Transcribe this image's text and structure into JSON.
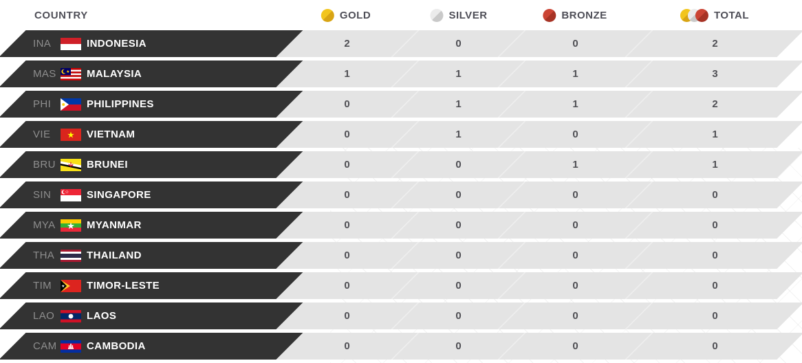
{
  "header": {
    "country_label": "COUNTRY",
    "columns": [
      {
        "key": "gold",
        "label": "GOLD",
        "icon": "gold-medal-icon"
      },
      {
        "key": "silver",
        "label": "SILVER",
        "icon": "silver-medal-icon"
      },
      {
        "key": "bronze",
        "label": "BRONZE",
        "icon": "bronze-medal-icon"
      },
      {
        "key": "total",
        "label": "TOTAL",
        "icon": "total-medals-icon"
      }
    ]
  },
  "colors": {
    "gold": "#f2c51d",
    "gold_dark": "#d8a413",
    "silver": "#ebebeb",
    "silver_dark": "#c9c9c9",
    "bronze": "#cb4434",
    "bronze_dark": "#a73325",
    "bar": "#333333",
    "cell": "#e4e4e4"
  },
  "rows": [
    {
      "code": "INA",
      "name": "INDONESIA",
      "flag": "indonesia",
      "gold": 2,
      "silver": 0,
      "bronze": 0,
      "total": 2
    },
    {
      "code": "MAS",
      "name": "MALAYSIA",
      "flag": "malaysia",
      "gold": 1,
      "silver": 1,
      "bronze": 1,
      "total": 3
    },
    {
      "code": "PHI",
      "name": "PHILIPPINES",
      "flag": "philippines",
      "gold": 0,
      "silver": 1,
      "bronze": 1,
      "total": 2
    },
    {
      "code": "VIE",
      "name": "VIETNAM",
      "flag": "vietnam",
      "gold": 0,
      "silver": 1,
      "bronze": 0,
      "total": 1
    },
    {
      "code": "BRU",
      "name": "BRUNEI",
      "flag": "brunei",
      "gold": 0,
      "silver": 0,
      "bronze": 1,
      "total": 1
    },
    {
      "code": "SIN",
      "name": "SINGAPORE",
      "flag": "singapore",
      "gold": 0,
      "silver": 0,
      "bronze": 0,
      "total": 0
    },
    {
      "code": "MYA",
      "name": "MYANMAR",
      "flag": "myanmar",
      "gold": 0,
      "silver": 0,
      "bronze": 0,
      "total": 0
    },
    {
      "code": "THA",
      "name": "THAILAND",
      "flag": "thailand",
      "gold": 0,
      "silver": 0,
      "bronze": 0,
      "total": 0
    },
    {
      "code": "TIM",
      "name": "TIMOR-LESTE",
      "flag": "timor-leste",
      "gold": 0,
      "silver": 0,
      "bronze": 0,
      "total": 0
    },
    {
      "code": "LAO",
      "name": "LAOS",
      "flag": "laos",
      "gold": 0,
      "silver": 0,
      "bronze": 0,
      "total": 0
    },
    {
      "code": "CAM",
      "name": "CAMBODIA",
      "flag": "cambodia",
      "gold": 0,
      "silver": 0,
      "bronze": 0,
      "total": 0
    }
  ]
}
